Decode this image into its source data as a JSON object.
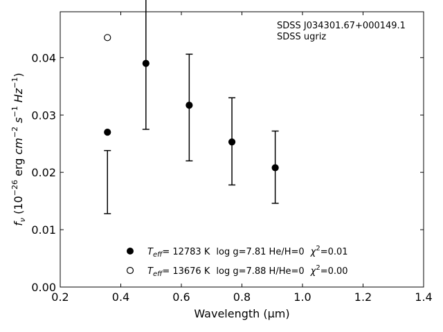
{
  "chart_data": {
    "type": "scatter",
    "xlabel": "Wavelength (μm)",
    "ylabel": "f_ν (10^-26 erg cm^-2 s^-1 Hz^-1)",
    "xlim": [
      0.2,
      1.4
    ],
    "ylim": [
      0.0,
      0.048
    ],
    "xticks": [
      "0.2",
      "0.4",
      "0.6",
      "0.8",
      "1.0",
      "1.2",
      "1.4"
    ],
    "yticks": [
      "0.00",
      "0.01",
      "0.02",
      "0.03",
      "0.04"
    ],
    "grid": false,
    "annotations": [
      "SDSS J034301.67+000149.1",
      "SDSS ugriz"
    ],
    "observed": {
      "x": [
        0.356,
        0.483,
        0.626,
        0.767,
        0.91
      ],
      "y": [
        0.0183,
        0.039,
        0.0313,
        0.0254,
        0.0209
      ],
      "yerr": [
        0.0055,
        0.0115,
        0.0093,
        0.0076,
        0.0063
      ]
    },
    "series": [
      {
        "name": "T_eff= 12783 K  log g=7.81  He/H=0  χ²=0.01",
        "marker": "filled-circle",
        "x": [
          0.356,
          0.483,
          0.626,
          0.767,
          0.91
        ],
        "y": [
          0.027,
          0.039,
          0.0317,
          0.0253,
          0.0208
        ]
      },
      {
        "name": "T_eff= 13676 K  log g=7.88  H/He=0  χ²=0.00",
        "marker": "open-circle",
        "x": [
          0.356
        ],
        "y": [
          0.0435
        ]
      }
    ],
    "legend": {
      "placement": "lower-center",
      "entries": [
        {
          "teff": "= 12783 K",
          "rest": "log g=7.81  He/H=0",
          "chi": "=0.01"
        },
        {
          "teff": "= 13676 K",
          "rest": "log g=7.88  H/He=0",
          "chi": "=0.00"
        }
      ]
    }
  }
}
